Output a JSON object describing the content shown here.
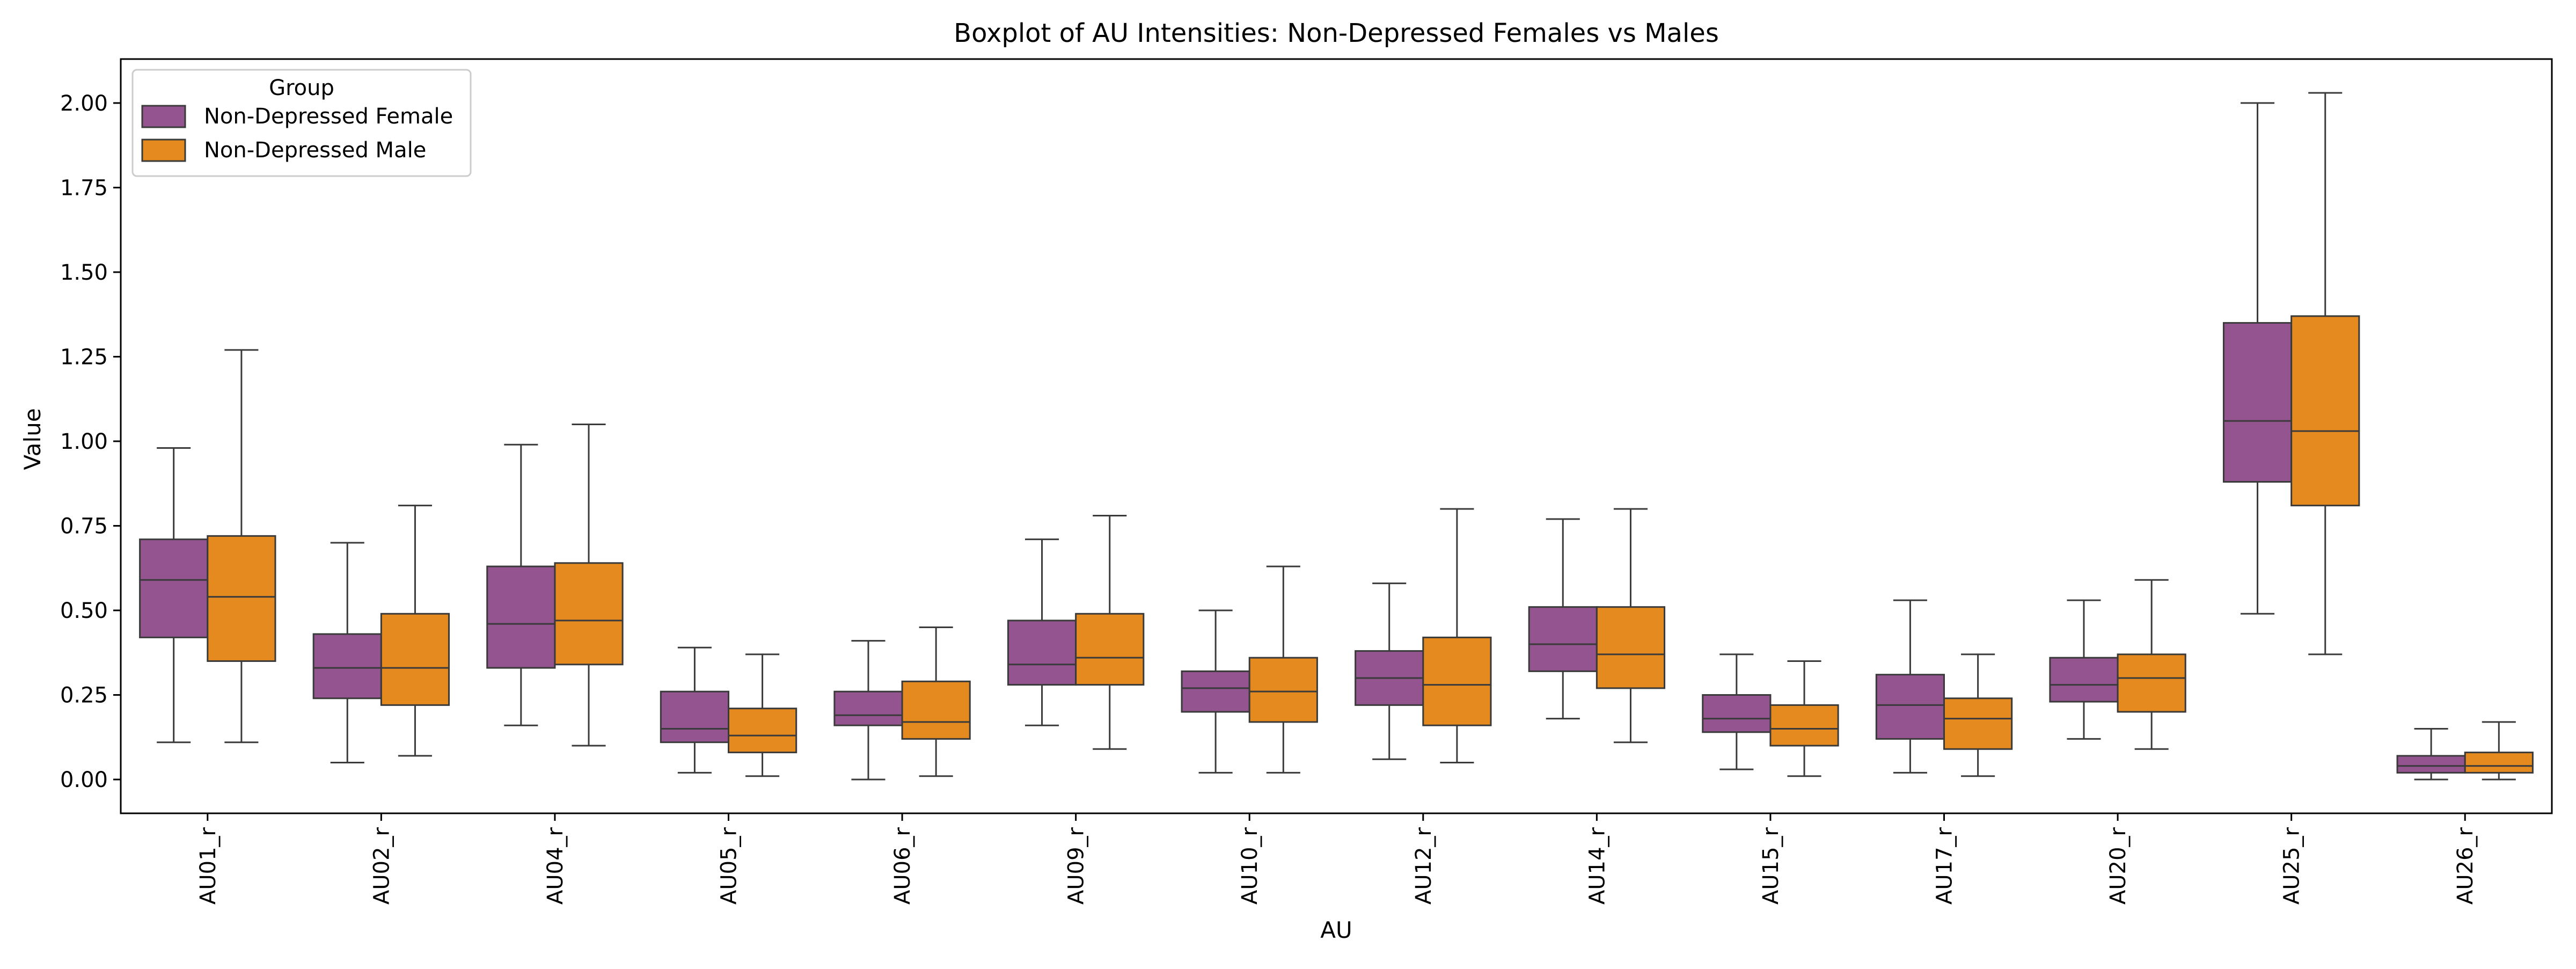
{
  "chart_data": {
    "type": "boxplot",
    "title": "Boxplot of AU Intensities: Non-Depressed Females vs Males",
    "xlabel": "AU",
    "ylabel": "Value",
    "ylim": [
      -0.1,
      2.13
    ],
    "yticks": [
      0.0,
      0.25,
      0.5,
      0.75,
      1.0,
      1.25,
      1.5,
      1.75,
      2.0
    ],
    "ytick_labels": [
      "0.00",
      "0.25",
      "0.50",
      "0.75",
      "1.00",
      "1.25",
      "1.50",
      "1.75",
      "2.00"
    ],
    "grid": false,
    "legend": {
      "title": "Group",
      "placement": "top-left"
    },
    "categories": [
      "AU01_r",
      "AU02_r",
      "AU04_r",
      "AU05_r",
      "AU06_r",
      "AU09_r",
      "AU10_r",
      "AU12_r",
      "AU14_r",
      "AU15_r",
      "AU17_r",
      "AU20_r",
      "AU25_r",
      "AU26_r"
    ],
    "series": [
      {
        "name": "Non-Depressed Female",
        "color": "#93548f",
        "boxes": [
          {
            "whislo": 0.11,
            "q1": 0.42,
            "med": 0.59,
            "q3": 0.71,
            "whishi": 0.98
          },
          {
            "whislo": 0.05,
            "q1": 0.24,
            "med": 0.33,
            "q3": 0.43,
            "whishi": 0.7
          },
          {
            "whislo": 0.16,
            "q1": 0.33,
            "med": 0.46,
            "q3": 0.63,
            "whishi": 0.99
          },
          {
            "whislo": 0.02,
            "q1": 0.11,
            "med": 0.15,
            "q3": 0.26,
            "whishi": 0.39
          },
          {
            "whislo": 0.0,
            "q1": 0.16,
            "med": 0.19,
            "q3": 0.26,
            "whishi": 0.41
          },
          {
            "whislo": 0.16,
            "q1": 0.28,
            "med": 0.34,
            "q3": 0.47,
            "whishi": 0.71
          },
          {
            "whislo": 0.02,
            "q1": 0.2,
            "med": 0.27,
            "q3": 0.32,
            "whishi": 0.5
          },
          {
            "whislo": 0.06,
            "q1": 0.22,
            "med": 0.3,
            "q3": 0.38,
            "whishi": 0.58
          },
          {
            "whislo": 0.18,
            "q1": 0.32,
            "med": 0.4,
            "q3": 0.51,
            "whishi": 0.77
          },
          {
            "whislo": 0.03,
            "q1": 0.14,
            "med": 0.18,
            "q3": 0.25,
            "whishi": 0.37
          },
          {
            "whislo": 0.02,
            "q1": 0.12,
            "med": 0.22,
            "q3": 0.31,
            "whishi": 0.53
          },
          {
            "whislo": 0.12,
            "q1": 0.23,
            "med": 0.28,
            "q3": 0.36,
            "whishi": 0.53
          },
          {
            "whislo": 0.49,
            "q1": 0.88,
            "med": 1.06,
            "q3": 1.35,
            "whishi": 2.0
          },
          {
            "whislo": 0.0,
            "q1": 0.02,
            "med": 0.04,
            "q3": 0.07,
            "whishi": 0.15
          }
        ]
      },
      {
        "name": "Non-Depressed Male",
        "color": "#e48a1f",
        "boxes": [
          {
            "whislo": 0.11,
            "q1": 0.35,
            "med": 0.54,
            "q3": 0.72,
            "whishi": 1.27
          },
          {
            "whislo": 0.07,
            "q1": 0.22,
            "med": 0.33,
            "q3": 0.49,
            "whishi": 0.81
          },
          {
            "whislo": 0.1,
            "q1": 0.34,
            "med": 0.47,
            "q3": 0.64,
            "whishi": 1.05
          },
          {
            "whislo": 0.01,
            "q1": 0.08,
            "med": 0.13,
            "q3": 0.21,
            "whishi": 0.37
          },
          {
            "whislo": 0.01,
            "q1": 0.12,
            "med": 0.17,
            "q3": 0.29,
            "whishi": 0.45
          },
          {
            "whislo": 0.09,
            "q1": 0.28,
            "med": 0.36,
            "q3": 0.49,
            "whishi": 0.78
          },
          {
            "whislo": 0.02,
            "q1": 0.17,
            "med": 0.26,
            "q3": 0.36,
            "whishi": 0.63
          },
          {
            "whislo": 0.05,
            "q1": 0.16,
            "med": 0.28,
            "q3": 0.42,
            "whishi": 0.8
          },
          {
            "whislo": 0.11,
            "q1": 0.27,
            "med": 0.37,
            "q3": 0.51,
            "whishi": 0.8
          },
          {
            "whislo": 0.01,
            "q1": 0.1,
            "med": 0.15,
            "q3": 0.22,
            "whishi": 0.35
          },
          {
            "whislo": 0.01,
            "q1": 0.09,
            "med": 0.18,
            "q3": 0.24,
            "whishi": 0.37
          },
          {
            "whislo": 0.09,
            "q1": 0.2,
            "med": 0.3,
            "q3": 0.37,
            "whishi": 0.59
          },
          {
            "whislo": 0.37,
            "q1": 0.81,
            "med": 1.03,
            "q3": 1.37,
            "whishi": 2.03
          },
          {
            "whislo": 0.0,
            "q1": 0.02,
            "med": 0.04,
            "q3": 0.08,
            "whishi": 0.17
          }
        ]
      }
    ]
  }
}
